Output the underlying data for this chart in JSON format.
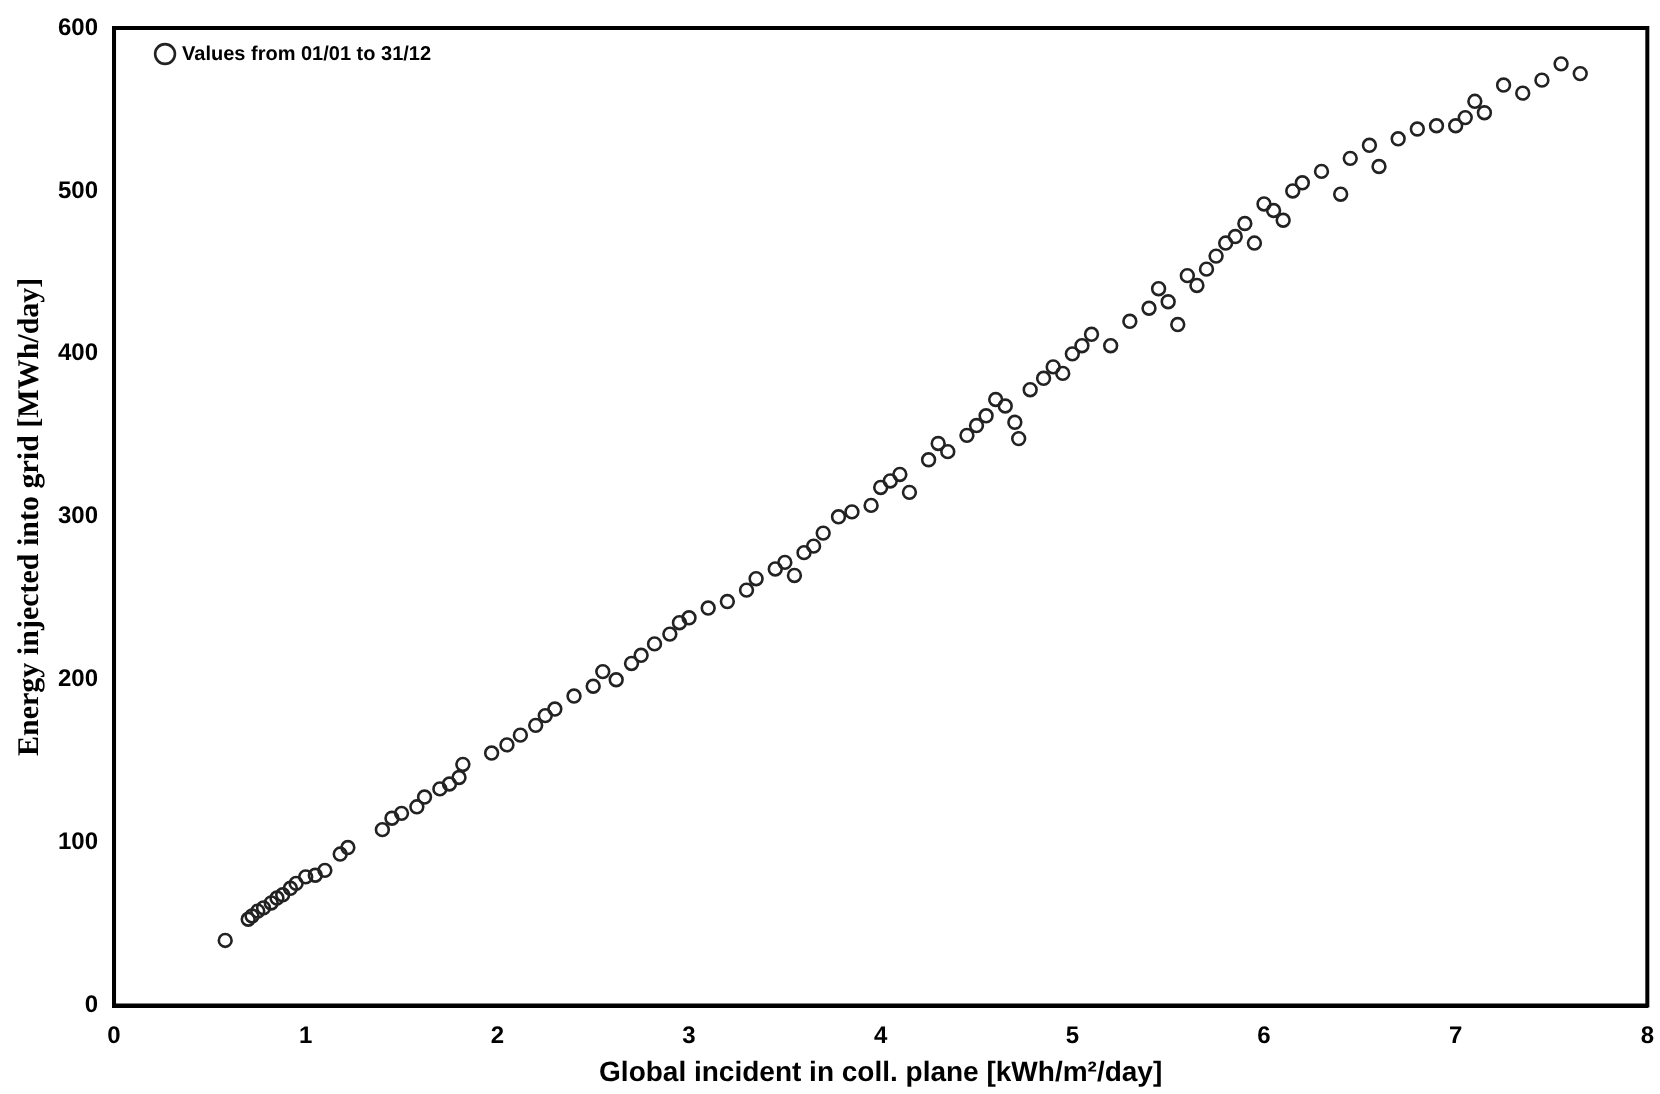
{
  "chart_data": {
    "type": "scatter",
    "xlabel": "Global incident in coll. plane [kWh/m²/day]",
    "ylabel": "Energy injected into grid [MWh/day]",
    "xlim": [
      0,
      8
    ],
    "xticks": [
      0,
      1,
      2,
      3,
      4,
      5,
      6,
      7,
      8
    ],
    "ylim": [
      0,
      600
    ],
    "yticks": [
      0,
      100,
      200,
      300,
      400,
      500,
      600
    ],
    "grid": false,
    "legend": "top left",
    "marker": "circle",
    "series": [
      {
        "name": "Values from 01/01 to 31/12",
        "color": "#222222",
        "x": [
          0.58,
          0.7,
          0.72,
          0.75,
          0.78,
          0.82,
          0.85,
          0.88,
          0.92,
          0.95,
          1.0,
          1.05,
          1.1,
          1.18,
          1.22,
          1.4,
          1.45,
          1.5,
          1.58,
          1.62,
          1.7,
          1.75,
          1.8,
          1.82,
          1.97,
          2.05,
          2.12,
          2.2,
          2.25,
          2.3,
          2.4,
          2.5,
          2.55,
          2.62,
          2.7,
          2.75,
          2.82,
          2.9,
          2.95,
          3.0,
          3.1,
          3.2,
          3.3,
          3.35,
          3.45,
          3.5,
          3.55,
          3.6,
          3.65,
          3.7,
          3.78,
          3.85,
          3.95,
          4.0,
          4.05,
          4.1,
          4.15,
          4.25,
          4.3,
          4.35,
          4.45,
          4.5,
          4.55,
          4.6,
          4.65,
          4.7,
          4.72,
          4.78,
          4.85,
          4.9,
          4.95,
          5.0,
          5.05,
          5.1,
          5.2,
          5.3,
          5.4,
          5.45,
          5.5,
          5.55,
          5.6,
          5.65,
          5.7,
          5.75,
          5.8,
          5.85,
          5.9,
          5.95,
          6.0,
          6.05,
          6.1,
          6.15,
          6.2,
          6.3,
          6.4,
          6.45,
          6.55,
          6.6,
          6.7,
          6.8,
          6.9,
          7.0,
          7.05,
          7.1,
          7.15,
          7.25,
          7.35,
          7.45,
          7.55,
          7.65
        ],
        "values": [
          40,
          53,
          55,
          58,
          60,
          63,
          66,
          68,
          72,
          75,
          79,
          80,
          83,
          93,
          97,
          108,
          115,
          118,
          122,
          128,
          133,
          136,
          140,
          148,
          155,
          160,
          166,
          172,
          178,
          182,
          190,
          196,
          205,
          200,
          210,
          215,
          222,
          228,
          235,
          238,
          244,
          248,
          255,
          262,
          268,
          272,
          264,
          278,
          282,
          290,
          300,
          303,
          307,
          318,
          322,
          326,
          315,
          335,
          345,
          340,
          350,
          356,
          362,
          372,
          368,
          358,
          348,
          378,
          385,
          392,
          388,
          400,
          405,
          412,
          405,
          420,
          428,
          440,
          432,
          418,
          448,
          442,
          452,
          460,
          468,
          472,
          480,
          468,
          492,
          488,
          482,
          500,
          505,
          512,
          498,
          520,
          528,
          515,
          532,
          538,
          540,
          540,
          545,
          555,
          548,
          565,
          560,
          568,
          578,
          572
        ]
      }
    ]
  }
}
